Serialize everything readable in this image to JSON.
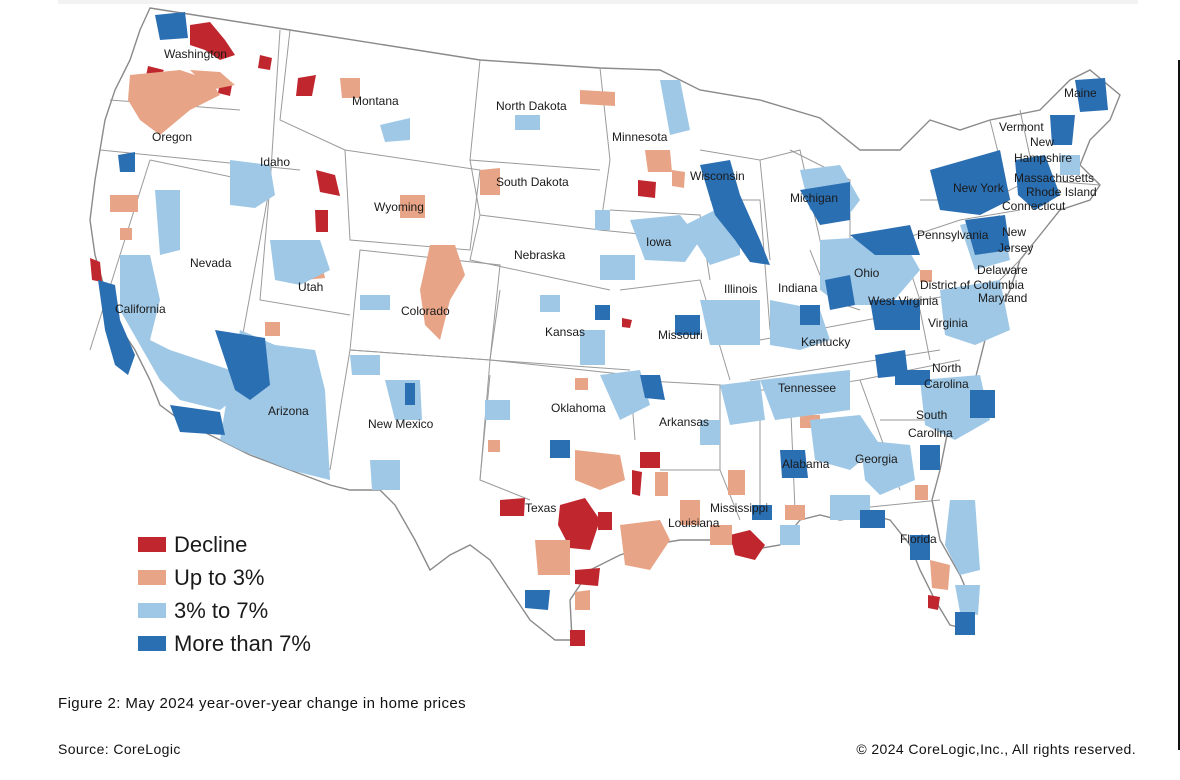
{
  "colors": {
    "decline": "#c0262d",
    "up_to_3": "#e8a486",
    "three_to_7": "#9fc8e6",
    "more_than_7": "#2b6fb3",
    "state_border": "#8a8a8a",
    "land": "#ffffff"
  },
  "map": {
    "states": [
      {
        "key": "WA",
        "label": "Washington"
      },
      {
        "key": "OR",
        "label": "Oregon"
      },
      {
        "key": "CA",
        "label": "California"
      },
      {
        "key": "NV",
        "label": "Nevada"
      },
      {
        "key": "ID",
        "label": "Idaho"
      },
      {
        "key": "MT",
        "label": "Montana"
      },
      {
        "key": "WY",
        "label": "Wyoming"
      },
      {
        "key": "UT",
        "label": "Utah"
      },
      {
        "key": "CO",
        "label": "Colorado"
      },
      {
        "key": "AZ",
        "label": "Arizona"
      },
      {
        "key": "NM",
        "label": "New Mexico"
      },
      {
        "key": "ND",
        "label": "North Dakota"
      },
      {
        "key": "SD",
        "label": "South Dakota"
      },
      {
        "key": "NE",
        "label": "Nebraska"
      },
      {
        "key": "KS",
        "label": "Kansas"
      },
      {
        "key": "OK",
        "label": "Oklahoma"
      },
      {
        "key": "TX",
        "label": "Texas"
      },
      {
        "key": "MN",
        "label": "Minnesota"
      },
      {
        "key": "IA",
        "label": "Iowa"
      },
      {
        "key": "MO",
        "label": "Missouri"
      },
      {
        "key": "AR",
        "label": "Arkansas"
      },
      {
        "key": "LA",
        "label": "Louisiana"
      },
      {
        "key": "WI",
        "label": "Wisconsin"
      },
      {
        "key": "IL",
        "label": "Illinois"
      },
      {
        "key": "MI",
        "label": "Michigan"
      },
      {
        "key": "IN",
        "label": "Indiana"
      },
      {
        "key": "OH",
        "label": "Ohio"
      },
      {
        "key": "KY",
        "label": "Kentucky"
      },
      {
        "key": "TN",
        "label": "Tennessee"
      },
      {
        "key": "MS",
        "label": "Mississippi"
      },
      {
        "key": "AL",
        "label": "Alabama"
      },
      {
        "key": "GA",
        "label": "Georgia"
      },
      {
        "key": "FL",
        "label": "Florida"
      },
      {
        "key": "SC1",
        "label": "South"
      },
      {
        "key": "SC2",
        "label": "Carolina"
      },
      {
        "key": "NC1",
        "label": "North"
      },
      {
        "key": "NC2",
        "label": "Carolina"
      },
      {
        "key": "VA",
        "label": "Virginia"
      },
      {
        "key": "WV",
        "label": "West Virginia"
      },
      {
        "key": "PA",
        "label": "Pennsylvania"
      },
      {
        "key": "NY",
        "label": "New York"
      },
      {
        "key": "VT",
        "label": "Vermont"
      },
      {
        "key": "NH1",
        "label": "New"
      },
      {
        "key": "NH2",
        "label": "Hampshire"
      },
      {
        "key": "ME",
        "label": "Maine"
      },
      {
        "key": "MA",
        "label": "Massachusetts"
      },
      {
        "key": "RI",
        "label": "Rhode Island"
      },
      {
        "key": "CT",
        "label": "Connecticut"
      },
      {
        "key": "NJ1",
        "label": "New"
      },
      {
        "key": "NJ2",
        "label": "Jersey"
      },
      {
        "key": "DE",
        "label": "Delaware"
      },
      {
        "key": "DC",
        "label": "District of Columbia"
      },
      {
        "key": "MD",
        "label": "Maryland"
      }
    ]
  },
  "legend": {
    "items": [
      {
        "label": "Decline",
        "color_key": "decline"
      },
      {
        "label": "Up to 3%",
        "color_key": "up_to_3"
      },
      {
        "label": "3% to 7%",
        "color_key": "three_to_7"
      },
      {
        "label": "More than 7%",
        "color_key": "more_than_7"
      }
    ]
  },
  "caption": "Figure 2: May 2024 year-over-year change in home prices",
  "source": "Source: CoreLogic",
  "copyright": "© 2024 CoreLogic,Inc., All rights reserved."
}
